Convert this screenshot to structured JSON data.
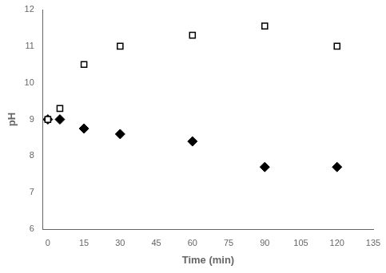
{
  "chart_data": {
    "type": "scatter",
    "x": [
      0,
      5,
      15,
      30,
      60,
      90,
      120
    ],
    "series": [
      {
        "color": "black",
        "marker": "open_square",
        "values": [
          9.0,
          9.3,
          10.5,
          11.0,
          11.3,
          11.55,
          11.0
        ]
      },
      {
        "color": "black",
        "marker": "filled_diamond",
        "values": [
          9.0,
          9.0,
          8.75,
          8.6,
          8.4,
          7.7,
          7.7
        ]
      }
    ],
    "xlabel": "Time (min)",
    "ylabel": "pH",
    "xlim": [
      -2,
      135
    ],
    "ylim": [
      6,
      12
    ],
    "xticks": [
      0,
      15,
      30,
      45,
      60,
      75,
      90,
      105,
      120,
      135
    ],
    "yticks": [
      6,
      7,
      8,
      9,
      10,
      11,
      12
    ],
    "grid": false
  }
}
